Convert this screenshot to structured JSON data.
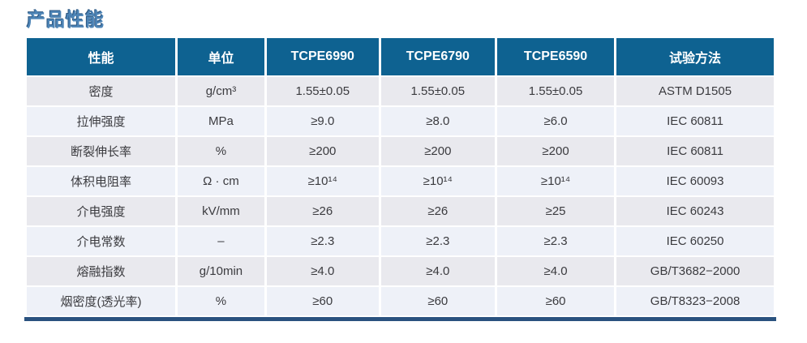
{
  "page_title": "产品性能",
  "colors": {
    "title_text": "#4d84b6",
    "header_bg": "#0e6291",
    "header_text": "#ffffff",
    "row_odd_bg": "#e9e9ee",
    "row_even_bg": "#eef1f8",
    "bottom_border": "#2a527f"
  },
  "table": {
    "headers": [
      "性能",
      "单位",
      "TCPE6990",
      "TCPE6790",
      "TCPE6590",
      "试验方法"
    ],
    "rows": [
      [
        "密度",
        "g/cm³",
        "1.55±0.05",
        "1.55±0.05",
        "1.55±0.05",
        "ASTM D1505"
      ],
      [
        "拉伸强度",
        "MPa",
        "≥9.0",
        "≥8.0",
        "≥6.0",
        "IEC 60811"
      ],
      [
        "断裂伸长率",
        "%",
        "≥200",
        "≥200",
        "≥200",
        "IEC 60811"
      ],
      [
        "体积电阻率",
        "Ω · cm",
        "≥10¹⁴",
        "≥10¹⁴",
        "≥10¹⁴",
        "IEC 60093"
      ],
      [
        "介电强度",
        "kV/mm",
        "≥26",
        "≥26",
        "≥25",
        "IEC 60243"
      ],
      [
        "介电常数",
        "–",
        "≥2.3",
        "≥2.3",
        "≥2.3",
        "IEC 60250"
      ],
      [
        "熔融指数",
        "g/10min",
        "≥4.0",
        "≥4.0",
        "≥4.0",
        "GB/T3682−2000"
      ],
      [
        "烟密度(透光率)",
        "%",
        "≥60",
        "≥60",
        "≥60",
        "GB/T8323−2008"
      ]
    ]
  }
}
